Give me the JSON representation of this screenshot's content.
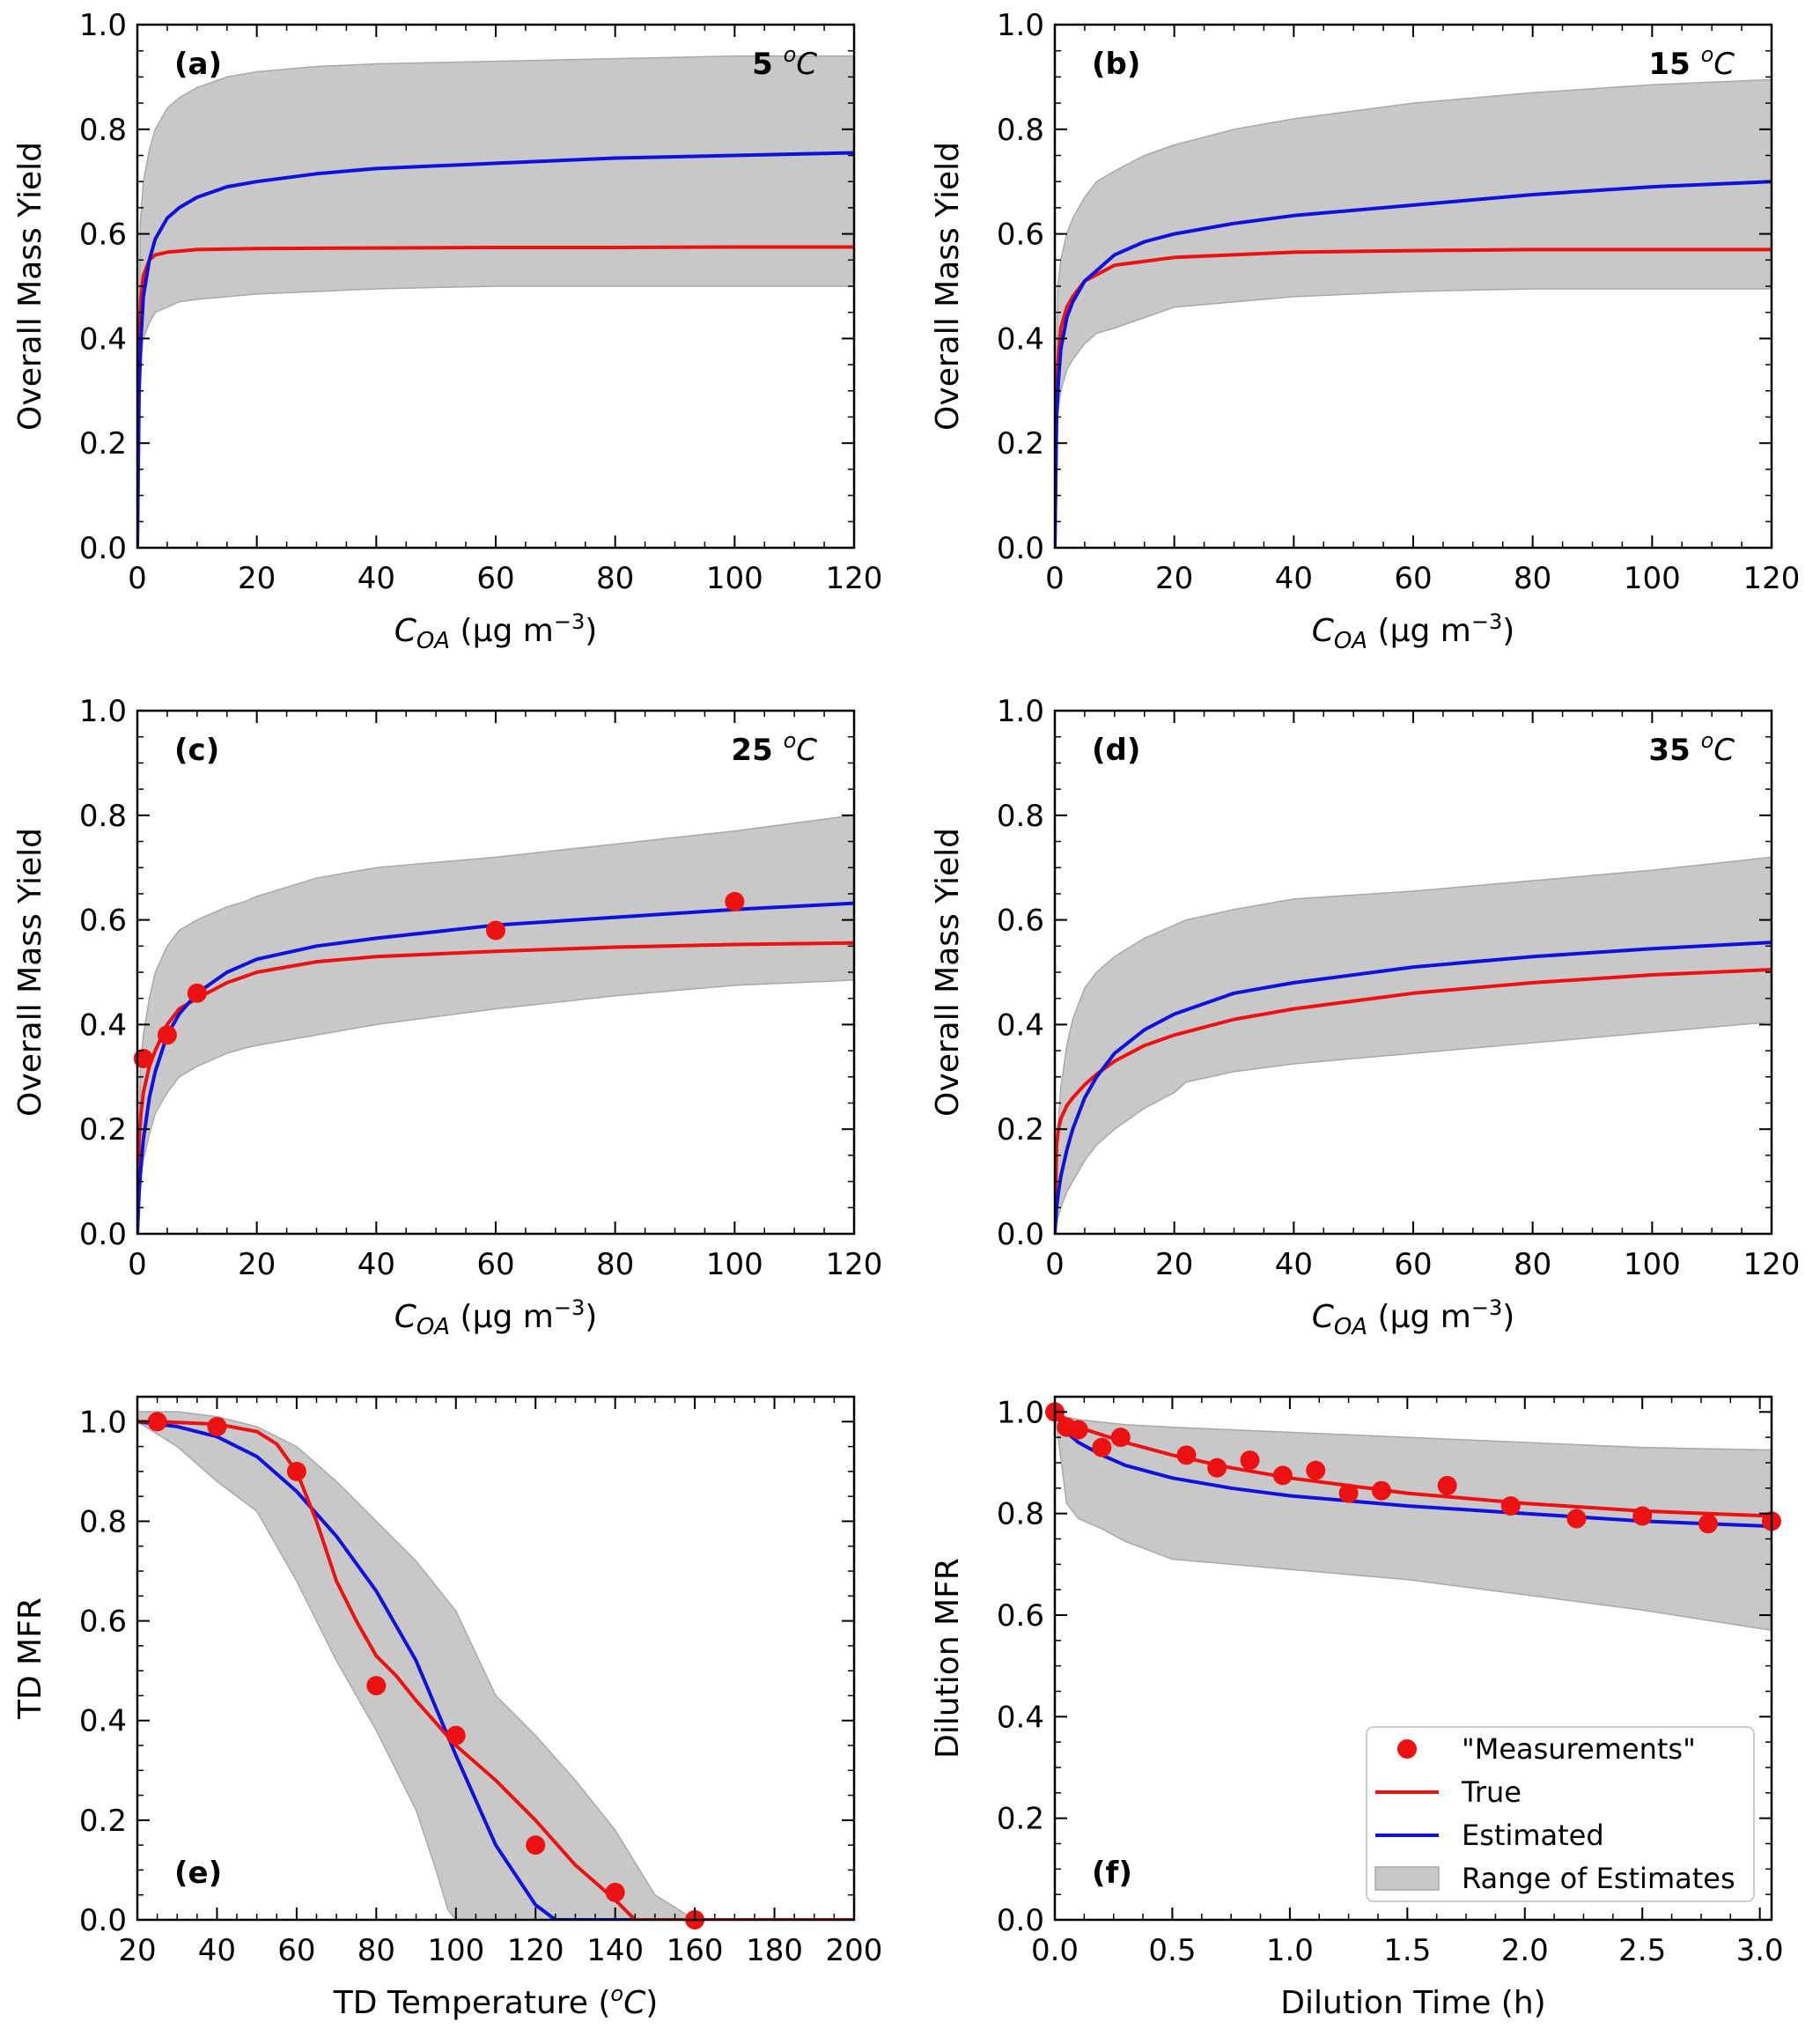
{
  "colors": {
    "true": "#ee1111",
    "estimated": "#1111dd",
    "range": "#c8c8c8",
    "measurements": "#ee1111"
  },
  "legend": {
    "measurements": "\"Measurements\"",
    "true": "True",
    "estimated": "Estimated",
    "range": "Range of Estimates"
  },
  "chart_data": [
    {
      "id": "a",
      "type": "line",
      "panel_label": "(a)",
      "annotation_value": "5",
      "annotation_unit": "C",
      "xlabel": {
        "main": "C",
        "sub": "OA",
        "tail": " (µg m",
        "sup": "−3",
        "end": ")"
      },
      "ylabel": "Overall Mass Yield",
      "xlim": [
        0,
        120
      ],
      "ylim": [
        0,
        1.0
      ],
      "xticks": [
        0,
        20,
        40,
        60,
        80,
        100,
        120
      ],
      "yticks": [
        0.0,
        0.2,
        0.4,
        0.6,
        0.8,
        1.0
      ],
      "ytick_labels": [
        "0.0",
        "0.2",
        "0.4",
        "0.6",
        "0.8",
        "1.0"
      ],
      "range_x": [
        0,
        0.5,
        1,
        2,
        3,
        5,
        7,
        10,
        15,
        20,
        30,
        40,
        60,
        80,
        100,
        120
      ],
      "range_upper": [
        0,
        0.62,
        0.7,
        0.76,
        0.8,
        0.84,
        0.86,
        0.88,
        0.9,
        0.91,
        0.92,
        0.925,
        0.93,
        0.935,
        0.94,
        0.94
      ],
      "range_lower": [
        0,
        0.35,
        0.4,
        0.43,
        0.45,
        0.46,
        0.47,
        0.475,
        0.48,
        0.485,
        0.49,
        0.495,
        0.5,
        0.5,
        0.5,
        0.5
      ],
      "series": [
        {
          "name": "True",
          "x": [
            0,
            0.3,
            0.6,
            1,
            2,
            3,
            5,
            10,
            20,
            40,
            60,
            80,
            100,
            120
          ],
          "values": [
            0,
            0.4,
            0.48,
            0.52,
            0.55,
            0.56,
            0.565,
            0.57,
            0.572,
            0.573,
            0.574,
            0.574,
            0.575,
            0.575
          ]
        },
        {
          "name": "Estimated",
          "x": [
            0,
            0.3,
            0.6,
            1,
            2,
            3,
            5,
            7,
            10,
            15,
            20,
            30,
            40,
            60,
            80,
            100,
            120
          ],
          "values": [
            0,
            0.3,
            0.4,
            0.48,
            0.55,
            0.59,
            0.63,
            0.65,
            0.67,
            0.69,
            0.7,
            0.715,
            0.725,
            0.735,
            0.745,
            0.75,
            0.755
          ]
        }
      ],
      "measurements": null
    },
    {
      "id": "b",
      "type": "line",
      "panel_label": "(b)",
      "annotation_value": "15",
      "annotation_unit": "C",
      "xlabel": {
        "main": "C",
        "sub": "OA",
        "tail": " (µg m",
        "sup": "−3",
        "end": ")"
      },
      "ylabel": "Overall Mass Yield",
      "xlim": [
        0,
        120
      ],
      "ylim": [
        0,
        1.0
      ],
      "xticks": [
        0,
        20,
        40,
        60,
        80,
        100,
        120
      ],
      "yticks": [
        0.0,
        0.2,
        0.4,
        0.6,
        0.8,
        1.0
      ],
      "ytick_labels": [
        "0.0",
        "0.2",
        "0.4",
        "0.6",
        "0.8",
        "1.0"
      ],
      "range_x": [
        0,
        0.5,
        1,
        2,
        3,
        5,
        7,
        10,
        15,
        20,
        30,
        40,
        60,
        80,
        100,
        120
      ],
      "range_upper": [
        0,
        0.5,
        0.55,
        0.6,
        0.63,
        0.67,
        0.7,
        0.72,
        0.75,
        0.77,
        0.8,
        0.82,
        0.85,
        0.87,
        0.885,
        0.895
      ],
      "range_lower": [
        0,
        0.26,
        0.3,
        0.34,
        0.36,
        0.39,
        0.41,
        0.42,
        0.44,
        0.46,
        0.47,
        0.48,
        0.49,
        0.495,
        0.495,
        0.495
      ],
      "series": [
        {
          "name": "True",
          "x": [
            0,
            0.3,
            0.6,
            1,
            2,
            3,
            5,
            10,
            20,
            40,
            60,
            80,
            100,
            120
          ],
          "values": [
            0,
            0.3,
            0.37,
            0.42,
            0.46,
            0.48,
            0.51,
            0.54,
            0.555,
            0.565,
            0.568,
            0.57,
            0.57,
            0.57
          ]
        },
        {
          "name": "Estimated",
          "x": [
            0,
            0.3,
            0.6,
            1,
            2,
            3,
            5,
            7,
            10,
            15,
            20,
            30,
            40,
            60,
            80,
            100,
            120
          ],
          "values": [
            0,
            0.25,
            0.32,
            0.38,
            0.44,
            0.47,
            0.51,
            0.53,
            0.56,
            0.585,
            0.6,
            0.62,
            0.635,
            0.655,
            0.675,
            0.69,
            0.7
          ]
        }
      ],
      "measurements": null
    },
    {
      "id": "c",
      "type": "line",
      "panel_label": "(c)",
      "annotation_value": "25",
      "annotation_unit": "C",
      "xlabel": {
        "main": "C",
        "sub": "OA",
        "tail": " (µg m",
        "sup": "−3",
        "end": ")"
      },
      "ylabel": "Overall Mass Yield",
      "xlim": [
        0,
        120
      ],
      "ylim": [
        0,
        1.0
      ],
      "xticks": [
        0,
        20,
        40,
        60,
        80,
        100,
        120
      ],
      "yticks": [
        0.0,
        0.2,
        0.4,
        0.6,
        0.8,
        1.0
      ],
      "ytick_labels": [
        "0.0",
        "0.2",
        "0.4",
        "0.6",
        "0.8",
        "1.0"
      ],
      "range_x": [
        0,
        0.5,
        1,
        2,
        3,
        5,
        7,
        10,
        15,
        18,
        20,
        30,
        40,
        60,
        80,
        100,
        120
      ],
      "range_upper": [
        0,
        0.32,
        0.38,
        0.45,
        0.5,
        0.55,
        0.58,
        0.6,
        0.625,
        0.635,
        0.645,
        0.68,
        0.7,
        0.72,
        0.745,
        0.77,
        0.8
      ],
      "range_lower": [
        0,
        0.1,
        0.14,
        0.19,
        0.23,
        0.27,
        0.3,
        0.32,
        0.345,
        0.355,
        0.36,
        0.38,
        0.4,
        0.43,
        0.455,
        0.475,
        0.485
      ],
      "series": [
        {
          "name": "True",
          "x": [
            0,
            0.3,
            0.6,
            1,
            2,
            3,
            5,
            7,
            10,
            15,
            20,
            30,
            40,
            60,
            80,
            100,
            120
          ],
          "values": [
            0,
            0.18,
            0.23,
            0.27,
            0.32,
            0.35,
            0.4,
            0.43,
            0.45,
            0.48,
            0.5,
            0.52,
            0.53,
            0.54,
            0.548,
            0.553,
            0.556
          ]
        },
        {
          "name": "Estimated",
          "x": [
            0,
            0.3,
            0.6,
            1,
            2,
            3,
            5,
            7,
            10,
            15,
            20,
            30,
            40,
            60,
            80,
            100,
            120
          ],
          "values": [
            0,
            0.08,
            0.13,
            0.18,
            0.26,
            0.31,
            0.38,
            0.42,
            0.46,
            0.5,
            0.525,
            0.55,
            0.565,
            0.59,
            0.605,
            0.62,
            0.632
          ]
        }
      ],
      "measurements": {
        "x": [
          1,
          5,
          10,
          60,
          100
        ],
        "y": [
          0.335,
          0.38,
          0.46,
          0.58,
          0.635
        ]
      }
    },
    {
      "id": "d",
      "type": "line",
      "panel_label": "(d)",
      "annotation_value": "35",
      "annotation_unit": "C",
      "xlabel": {
        "main": "C",
        "sub": "OA",
        "tail": " (µg m",
        "sup": "−3",
        "end": ")"
      },
      "ylabel": "Overall Mass Yield",
      "xlim": [
        0,
        120
      ],
      "ylim": [
        0,
        1.0
      ],
      "xticks": [
        0,
        20,
        40,
        60,
        80,
        100,
        120
      ],
      "yticks": [
        0.0,
        0.2,
        0.4,
        0.6,
        0.8,
        1.0
      ],
      "ytick_labels": [
        "0.0",
        "0.2",
        "0.4",
        "0.6",
        "0.8",
        "1.0"
      ],
      "range_x": [
        0,
        0.5,
        1,
        2,
        3,
        5,
        7,
        10,
        15,
        20,
        22,
        30,
        40,
        60,
        65,
        80,
        100,
        120
      ],
      "range_upper": [
        0,
        0.2,
        0.28,
        0.36,
        0.41,
        0.47,
        0.5,
        0.53,
        0.565,
        0.59,
        0.6,
        0.62,
        0.64,
        0.655,
        0.66,
        0.675,
        0.695,
        0.72
      ],
      "range_lower": [
        0,
        0.03,
        0.05,
        0.08,
        0.1,
        0.14,
        0.17,
        0.2,
        0.24,
        0.27,
        0.29,
        0.31,
        0.325,
        0.345,
        0.35,
        0.365,
        0.385,
        0.405
      ],
      "series": [
        {
          "name": "True",
          "x": [
            0,
            0.3,
            0.6,
            1,
            2,
            3,
            5,
            7,
            10,
            15,
            20,
            30,
            40,
            60,
            80,
            100,
            120
          ],
          "values": [
            0,
            0.17,
            0.2,
            0.22,
            0.245,
            0.26,
            0.285,
            0.305,
            0.33,
            0.36,
            0.38,
            0.41,
            0.43,
            0.46,
            0.48,
            0.495,
            0.505
          ]
        },
        {
          "name": "Estimated",
          "x": [
            0,
            0.3,
            0.6,
            1,
            2,
            3,
            5,
            7,
            10,
            15,
            20,
            30,
            40,
            60,
            80,
            100,
            120
          ],
          "values": [
            0,
            0.05,
            0.08,
            0.11,
            0.16,
            0.2,
            0.26,
            0.3,
            0.345,
            0.39,
            0.42,
            0.46,
            0.48,
            0.51,
            0.53,
            0.545,
            0.557
          ]
        }
      ],
      "measurements": null
    },
    {
      "id": "e",
      "type": "line",
      "panel_label": "(e)",
      "annotation_value": "",
      "annotation_unit": "",
      "xlabel": {
        "main": "TD Temperature (",
        "sup_italic": "o",
        "italic": "C",
        "end": ")"
      },
      "ylabel": "TD MFR",
      "xlim": [
        20,
        200
      ],
      "ylim": [
        0,
        1.05
      ],
      "xticks": [
        20,
        40,
        60,
        80,
        100,
        120,
        140,
        160,
        180,
        200
      ],
      "yticks": [
        0.0,
        0.2,
        0.4,
        0.6,
        0.8,
        1.0
      ],
      "ytick_labels": [
        "0.0",
        "0.2",
        "0.4",
        "0.6",
        "0.8",
        "1.0"
      ],
      "range_x_upper": [
        20,
        30,
        40,
        50,
        60,
        70,
        80,
        90,
        100,
        110,
        120,
        130,
        140,
        150,
        160
      ],
      "range_upper": [
        1.02,
        1.02,
        1.01,
        0.99,
        0.95,
        0.88,
        0.8,
        0.72,
        0.62,
        0.45,
        0.37,
        0.28,
        0.18,
        0.05,
        0.0
      ],
      "range_x_lower": [
        20,
        30,
        40,
        50,
        60,
        70,
        80,
        90,
        95,
        98,
        100
      ],
      "range_lower": [
        1.0,
        0.95,
        0.88,
        0.82,
        0.68,
        0.52,
        0.38,
        0.22,
        0.1,
        0.02,
        0.0
      ],
      "series": [
        {
          "name": "True",
          "x": [
            20,
            25,
            40,
            50,
            55,
            60,
            65,
            70,
            75,
            80,
            85,
            90,
            100,
            110,
            120,
            130,
            140,
            145,
            150,
            160,
            180,
            200
          ],
          "values": [
            1.0,
            1.0,
            0.995,
            0.98,
            0.955,
            0.9,
            0.8,
            0.68,
            0.6,
            0.53,
            0.49,
            0.44,
            0.35,
            0.28,
            0.2,
            0.11,
            0.04,
            0.0,
            0.0,
            0.0,
            0.0,
            0.0
          ]
        },
        {
          "name": "Estimated",
          "x": [
            20,
            30,
            40,
            50,
            60,
            70,
            80,
            90,
            100,
            110,
            120,
            125,
            130,
            160,
            200
          ],
          "values": [
            1.0,
            0.99,
            0.97,
            0.93,
            0.86,
            0.77,
            0.66,
            0.52,
            0.33,
            0.15,
            0.03,
            0.0,
            0.0,
            0.0,
            0.0
          ]
        }
      ],
      "measurements": {
        "x": [
          25,
          40,
          60,
          80,
          100,
          120,
          140,
          160
        ],
        "y": [
          1.0,
          0.99,
          0.9,
          0.47,
          0.37,
          0.15,
          0.055,
          0.0
        ]
      }
    },
    {
      "id": "f",
      "type": "line",
      "panel_label": "(f)",
      "annotation_value": "",
      "annotation_unit": "",
      "xlabel": {
        "main": "Dilution Time (h)"
      },
      "ylabel": "Dilution MFR",
      "xlim": [
        0,
        3.05
      ],
      "ylim": [
        0,
        1.03
      ],
      "xticks": [
        0.0,
        0.5,
        1.0,
        1.5,
        2.0,
        2.5,
        3.0
      ],
      "xtick_labels": [
        "0.0",
        "0.5",
        "1.0",
        "1.5",
        "2.0",
        "2.5",
        "3.0"
      ],
      "yticks": [
        0.0,
        0.2,
        0.4,
        0.6,
        0.8,
        1.0
      ],
      "ytick_labels": [
        "0.0",
        "0.2",
        "0.4",
        "0.6",
        "0.8",
        "1.0"
      ],
      "range_x": [
        0,
        0.05,
        0.1,
        0.2,
        0.3,
        0.5,
        0.75,
        1.0,
        1.5,
        2.0,
        2.5,
        3.05
      ],
      "range_upper": [
        1.0,
        0.99,
        0.985,
        0.98,
        0.975,
        0.97,
        0.965,
        0.96,
        0.95,
        0.94,
        0.93,
        0.925
      ],
      "range_lower": [
        1.0,
        0.82,
        0.79,
        0.77,
        0.745,
        0.71,
        0.7,
        0.69,
        0.67,
        0.64,
        0.61,
        0.57
      ],
      "series": [
        {
          "name": "True",
          "x": [
            0,
            0.05,
            0.1,
            0.2,
            0.3,
            0.5,
            0.75,
            1.0,
            1.25,
            1.5,
            2.0,
            2.5,
            3.05
          ],
          "values": [
            1.0,
            0.985,
            0.97,
            0.955,
            0.94,
            0.915,
            0.89,
            0.87,
            0.855,
            0.84,
            0.82,
            0.805,
            0.795
          ]
        },
        {
          "name": "Estimated",
          "x": [
            0,
            0.05,
            0.1,
            0.2,
            0.3,
            0.5,
            0.75,
            1.0,
            1.25,
            1.5,
            2.0,
            2.5,
            3.05
          ],
          "values": [
            1.0,
            0.96,
            0.94,
            0.915,
            0.895,
            0.87,
            0.85,
            0.835,
            0.825,
            0.815,
            0.8,
            0.785,
            0.775
          ]
        }
      ],
      "measurements": {
        "x": [
          0.0,
          0.05,
          0.1,
          0.2,
          0.28,
          0.56,
          0.69,
          0.83,
          0.97,
          1.11,
          1.25,
          1.39,
          1.67,
          1.94,
          2.22,
          2.5,
          2.78,
          3.05
        ],
        "y": [
          1.0,
          0.97,
          0.965,
          0.93,
          0.95,
          0.915,
          0.89,
          0.905,
          0.875,
          0.885,
          0.84,
          0.845,
          0.855,
          0.815,
          0.79,
          0.795,
          0.78,
          0.785
        ]
      }
    }
  ]
}
